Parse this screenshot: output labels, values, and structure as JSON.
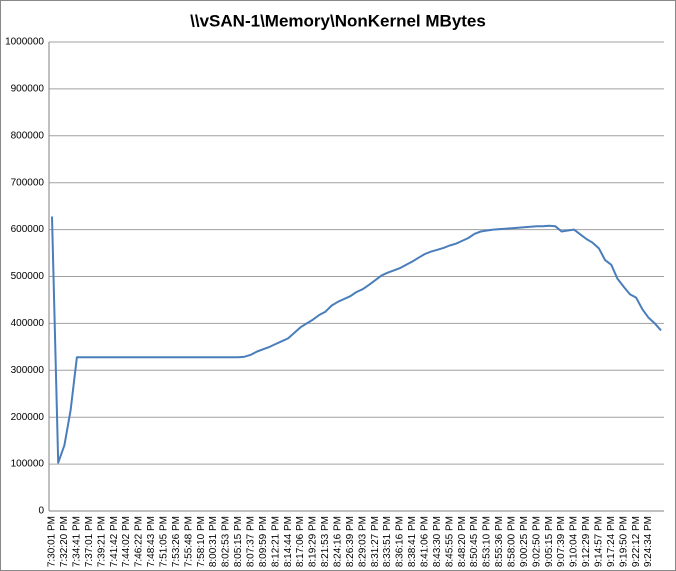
{
  "chart_data": {
    "type": "line",
    "title": "\\\\vSAN-1\\Memory\\NonKernel MBytes",
    "categories": [
      "7:30:01 PM",
      null,
      "7:32:20 PM",
      null,
      "7:34:41 PM",
      null,
      "7:37:01 PM",
      null,
      "7:39:21 PM",
      null,
      "7:41:42 PM",
      null,
      "7:44:02 PM",
      null,
      "7:46:22 PM",
      null,
      "7:48:43 PM",
      null,
      "7:51:05 PM",
      null,
      "7:53:26 PM",
      null,
      "7:55:48 PM",
      null,
      "7:58:10 PM",
      null,
      "8:00:31 PM",
      null,
      "8:02:53 PM",
      null,
      "8:05:15 PM",
      null,
      "8:07:37 PM",
      null,
      "8:09:59 PM",
      null,
      "8:12:21 PM",
      null,
      "8:14:44 PM",
      null,
      "8:17:06 PM",
      null,
      "8:19:29 PM",
      null,
      "8:21:53 PM",
      null,
      "8:24:16 PM",
      null,
      "8:26:39 PM",
      null,
      "8:29:03 PM",
      null,
      "8:31:27 PM",
      null,
      "8:33:51 PM",
      null,
      "8:36:16 PM",
      null,
      "8:38:41 PM",
      null,
      "8:41:06 PM",
      null,
      "8:43:30 PM",
      null,
      "8:45:55 PM",
      null,
      "8:48:20 PM",
      null,
      "8:50:45 PM",
      null,
      "8:53:10 PM",
      null,
      "8:55:36 PM",
      null,
      "8:58:00 PM",
      null,
      "9:00:25 PM",
      null,
      "9:02:50 PM",
      null,
      "9:05:15 PM",
      null,
      "9:07:39 PM",
      null,
      "9:10:04 PM",
      null,
      "9:12:29 PM",
      null,
      "9:14:57 PM",
      null,
      "9:17:24 PM",
      null,
      "9:19:50 PM",
      null,
      "9:22:12 PM",
      null,
      "9:24:34 PM",
      null,
      null
    ],
    "values": [
      628000,
      103000,
      140000,
      215000,
      328000,
      328000,
      328000,
      328000,
      328000,
      328000,
      328000,
      328000,
      328000,
      328000,
      328000,
      328000,
      328000,
      328000,
      328000,
      328000,
      328000,
      328000,
      328000,
      328000,
      328000,
      328000,
      328000,
      328000,
      328000,
      328000,
      328000,
      329000,
      333000,
      340000,
      345000,
      350000,
      356000,
      362000,
      368000,
      380000,
      392000,
      400000,
      408000,
      418000,
      425000,
      438000,
      446000,
      452000,
      458000,
      467000,
      473000,
      482000,
      492000,
      502000,
      508000,
      513000,
      518000,
      525000,
      532000,
      540000,
      548000,
      553000,
      557000,
      561000,
      566000,
      570000,
      576000,
      582000,
      591000,
      596000,
      598000,
      600000,
      601000,
      602000,
      603000,
      604000,
      605000,
      606000,
      607000,
      607000,
      608000,
      607000,
      596000,
      598000,
      600000,
      590000,
      580000,
      572000,
      560000,
      535000,
      525000,
      495000,
      478000,
      462000,
      455000,
      430000,
      412000,
      400000,
      385000
    ],
    "color": "#4a7ebb",
    "ylim": [
      0,
      1000000
    ],
    "yticks": [
      0,
      100000,
      200000,
      300000,
      400000,
      500000,
      600000,
      700000,
      800000,
      900000,
      1000000
    ],
    "grid": true
  }
}
